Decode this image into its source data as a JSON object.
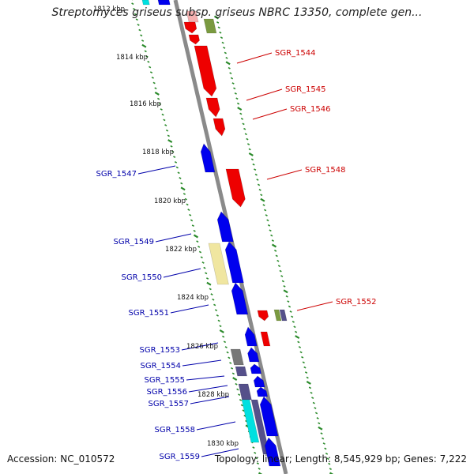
{
  "title": "Streptomyces griseus subsp. griseus NBRC 13350, complete gen...",
  "footer": {
    "accession": "Accession: NC_010572",
    "summary": "Topology: linear; Length: 8,545,929 bp; Genes: 7,222"
  },
  "colors": {
    "backbone": "#8a8a8a",
    "tick_marks": "#2a8a2a",
    "forward_label": "#cc0000",
    "reverse_label": "#0000aa"
  },
  "scale_labels": [
    "1812 kbp",
    "1814 kbp",
    "1816 kbp",
    "1818 kbp",
    "1820 kbp",
    "1822 kbp",
    "1824 kbp",
    "1826 kbp",
    "1828 kbp",
    "1830 kbp"
  ],
  "gene_labels": {
    "forward": [
      "SGR_1544",
      "SGR_1545",
      "SGR_1546",
      "SGR_1548",
      "SGR_1552"
    ],
    "reverse": [
      "SGR_1547",
      "SGR_1549",
      "SGR_1550",
      "SGR_1551",
      "SGR_1553",
      "SGR_1554",
      "SGR_1555",
      "SGR_1556",
      "SGR_1557",
      "SGR_1558",
      "SGR_1559"
    ]
  },
  "feature_colors": {
    "gene_forward": "#ee0000",
    "gene_reverse": "#0000ee",
    "pseudo_light": "#f0e6a0",
    "rna_cyan": "#00e0e0",
    "gray_feature": "#777777",
    "slate_feature": "#55508a",
    "olive_feature": "#7a9a40"
  }
}
